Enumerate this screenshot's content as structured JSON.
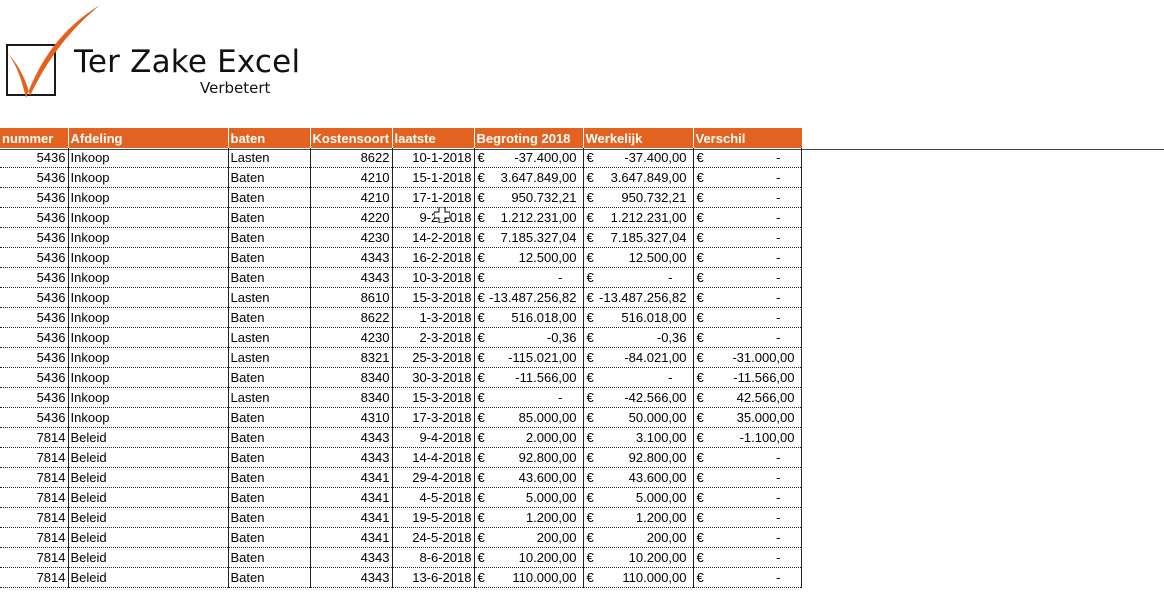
{
  "logo": {
    "title": "Ter Zake Excel",
    "subtitle": "Verbetert",
    "accent_color": "#e3621f"
  },
  "table": {
    "header_color": "#e3621f",
    "headers": [
      "nummer",
      "Afdeling",
      "baten",
      "Kostensoort",
      "laatste",
      "Begroting 2018",
      "Werkelijk",
      "Verschil"
    ],
    "currency_symbol": "€",
    "rows": [
      {
        "nummer": "5436",
        "afdeling": "Inkoop",
        "baten": "Lasten",
        "kostensoort": "8622",
        "laatste": "10-1-2018",
        "begroting": "-37.400,00",
        "werkelijk": "-37.400,00",
        "verschil": "-"
      },
      {
        "nummer": "5436",
        "afdeling": "Inkoop",
        "baten": "Baten",
        "kostensoort": "4210",
        "laatste": "15-1-2018",
        "begroting": "3.647.849,00",
        "werkelijk": "3.647.849,00",
        "verschil": "-"
      },
      {
        "nummer": "5436",
        "afdeling": "Inkoop",
        "baten": "Baten",
        "kostensoort": "4210",
        "laatste": "17-1-2018",
        "begroting": "950.732,21",
        "werkelijk": "950.732,21",
        "verschil": "-"
      },
      {
        "nummer": "5436",
        "afdeling": "Inkoop",
        "baten": "Baten",
        "kostensoort": "4220",
        "laatste": "9-2-2018",
        "begroting": "1.212.231,00",
        "werkelijk": "1.212.231,00",
        "verschil": "-"
      },
      {
        "nummer": "5436",
        "afdeling": "Inkoop",
        "baten": "Baten",
        "kostensoort": "4230",
        "laatste": "14-2-2018",
        "begroting": "7.185.327,04",
        "werkelijk": "7.185.327,04",
        "verschil": "-"
      },
      {
        "nummer": "5436",
        "afdeling": "Inkoop",
        "baten": "Baten",
        "kostensoort": "4343",
        "laatste": "16-2-2018",
        "begroting": "12.500,00",
        "werkelijk": "12.500,00",
        "verschil": "-"
      },
      {
        "nummer": "5436",
        "afdeling": "Inkoop",
        "baten": "Baten",
        "kostensoort": "4343",
        "laatste": "10-3-2018",
        "begroting": "-",
        "werkelijk": "-",
        "verschil": "-"
      },
      {
        "nummer": "5436",
        "afdeling": "Inkoop",
        "baten": "Lasten",
        "kostensoort": "8610",
        "laatste": "15-3-2018",
        "begroting": "-13.487.256,82",
        "werkelijk": "-13.487.256,82",
        "verschil": "-"
      },
      {
        "nummer": "5436",
        "afdeling": "Inkoop",
        "baten": "Baten",
        "kostensoort": "8622",
        "laatste": "1-3-2018",
        "begroting": "516.018,00",
        "werkelijk": "516.018,00",
        "verschil": "-"
      },
      {
        "nummer": "5436",
        "afdeling": "Inkoop",
        "baten": "Lasten",
        "kostensoort": "4230",
        "laatste": "2-3-2018",
        "begroting": "-0,36",
        "werkelijk": "-0,36",
        "verschil": "-"
      },
      {
        "nummer": "5436",
        "afdeling": "Inkoop",
        "baten": "Lasten",
        "kostensoort": "8321",
        "laatste": "25-3-2018",
        "begroting": "-115.021,00",
        "werkelijk": "-84.021,00",
        "verschil": "-31.000,00"
      },
      {
        "nummer": "5436",
        "afdeling": "Inkoop",
        "baten": "Baten",
        "kostensoort": "8340",
        "laatste": "30-3-2018",
        "begroting": "-11.566,00",
        "werkelijk": "-",
        "verschil": "-11.566,00"
      },
      {
        "nummer": "5436",
        "afdeling": "Inkoop",
        "baten": "Lasten",
        "kostensoort": "8340",
        "laatste": "15-3-2018",
        "begroting": "-",
        "werkelijk": "-42.566,00",
        "verschil": "42.566,00"
      },
      {
        "nummer": "5436",
        "afdeling": "Inkoop",
        "baten": "Baten",
        "kostensoort": "4310",
        "laatste": "17-3-2018",
        "begroting": "85.000,00",
        "werkelijk": "50.000,00",
        "verschil": "35.000,00"
      },
      {
        "nummer": "7814",
        "afdeling": "Beleid",
        "baten": "Baten",
        "kostensoort": "4343",
        "laatste": "9-4-2018",
        "begroting": "2.000,00",
        "werkelijk": "3.100,00",
        "verschil": "-1.100,00"
      },
      {
        "nummer": "7814",
        "afdeling": "Beleid",
        "baten": "Baten",
        "kostensoort": "4343",
        "laatste": "14-4-2018",
        "begroting": "92.800,00",
        "werkelijk": "92.800,00",
        "verschil": "-"
      },
      {
        "nummer": "7814",
        "afdeling": "Beleid",
        "baten": "Baten",
        "kostensoort": "4341",
        "laatste": "29-4-2018",
        "begroting": "43.600,00",
        "werkelijk": "43.600,00",
        "verschil": "-"
      },
      {
        "nummer": "7814",
        "afdeling": "Beleid",
        "baten": "Baten",
        "kostensoort": "4341",
        "laatste": "4-5-2018",
        "begroting": "5.000,00",
        "werkelijk": "5.000,00",
        "verschil": "-"
      },
      {
        "nummer": "7814",
        "afdeling": "Beleid",
        "baten": "Baten",
        "kostensoort": "4341",
        "laatste": "19-5-2018",
        "begroting": "1.200,00",
        "werkelijk": "1.200,00",
        "verschil": "-"
      },
      {
        "nummer": "7814",
        "afdeling": "Beleid",
        "baten": "Baten",
        "kostensoort": "4341",
        "laatste": "24-5-2018",
        "begroting": "200,00",
        "werkelijk": "200,00",
        "verschil": "-"
      },
      {
        "nummer": "7814",
        "afdeling": "Beleid",
        "baten": "Baten",
        "kostensoort": "4343",
        "laatste": "8-6-2018",
        "begroting": "10.200,00",
        "werkelijk": "10.200,00",
        "verschil": "-"
      },
      {
        "nummer": "7814",
        "afdeling": "Beleid",
        "baten": "Baten",
        "kostensoort": "4343",
        "laatste": "13-6-2018",
        "begroting": "110.000,00",
        "werkelijk": "110.000,00",
        "verschil": "-"
      }
    ]
  }
}
